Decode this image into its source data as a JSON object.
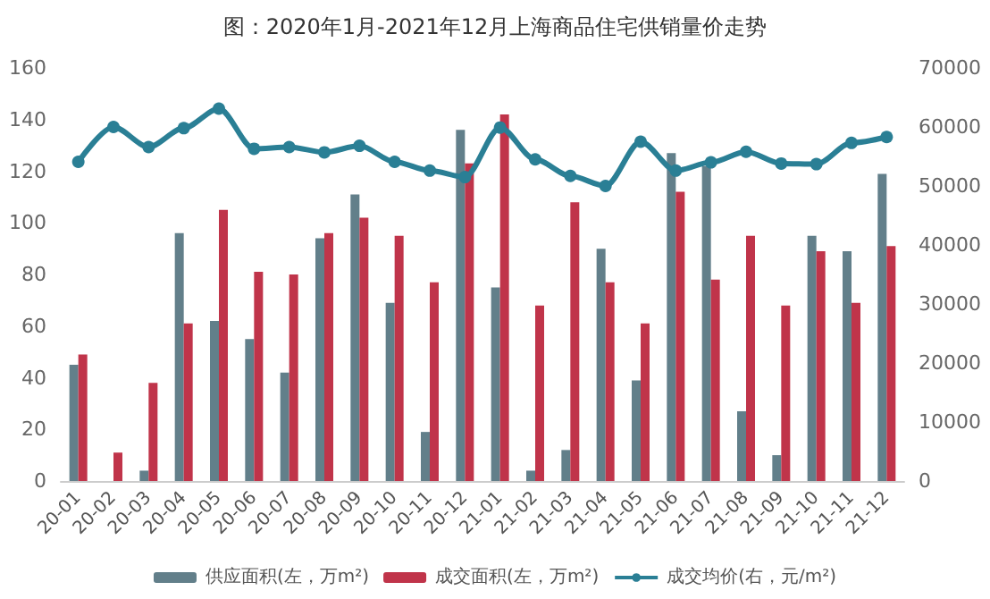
{
  "chart_data": {
    "type": "bar",
    "title": "图：2020年1月-2021年12月上海商品住宅供销量价走势",
    "categories": [
      "20-01",
      "20-02",
      "20-03",
      "20-04",
      "20-05",
      "20-06",
      "20-07",
      "20-08",
      "20-09",
      "20-10",
      "20-11",
      "20-12",
      "21-01",
      "21-02",
      "21-03",
      "21-04",
      "21-05",
      "21-06",
      "21-07",
      "21-08",
      "21-09",
      "21-10",
      "21-11",
      "21-12"
    ],
    "series": [
      {
        "name": "供应面积(左，万m²)",
        "color": "#627f8a",
        "values": [
          45,
          0,
          4,
          96,
          62,
          55,
          42,
          94,
          111,
          69,
          19,
          136,
          75,
          4,
          12,
          90,
          39,
          127,
          122,
          27,
          10,
          95,
          89,
          119
        ]
      },
      {
        "name": "成交面积(左，万m²)",
        "color": "#c0344a",
        "values": [
          49,
          11,
          38,
          61,
          105,
          81,
          80,
          96,
          102,
          95,
          77,
          123,
          142,
          68,
          108,
          77,
          61,
          112,
          78,
          95,
          68,
          89,
          69,
          91
        ]
      },
      {
        "name": "成交均价(右，元/m²)",
        "type": "line",
        "axis": "y2",
        "color": "#2a7f95",
        "marker": "circle",
        "values": [
          54100,
          60000,
          56600,
          59800,
          63100,
          56300,
          56600,
          55700,
          56800,
          54100,
          52600,
          51500,
          59900,
          54500,
          51700,
          50000,
          57500,
          52600,
          54000,
          55800,
          53800,
          53700,
          57300,
          58300
        ]
      }
    ],
    "ylim": [
      0,
      160
    ],
    "yticks": [
      0,
      20,
      40,
      60,
      80,
      100,
      120,
      140,
      160
    ],
    "y2lim": [
      0,
      70000
    ],
    "y2ticks": [
      0,
      10000,
      20000,
      30000,
      40000,
      50000,
      60000,
      70000
    ],
    "grid": false,
    "legend": "bottom"
  }
}
